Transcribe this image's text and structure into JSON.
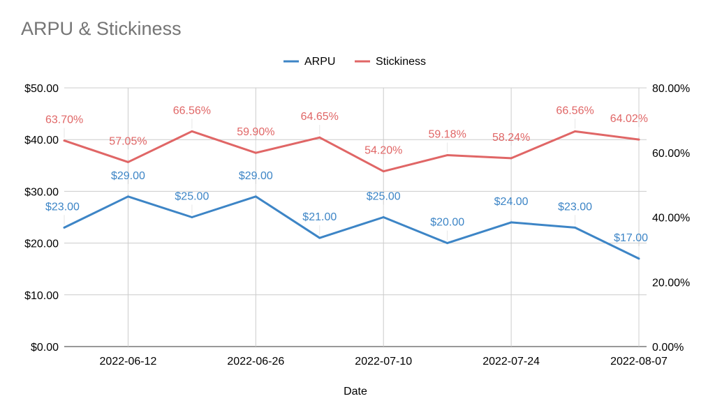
{
  "chart_data": {
    "type": "line",
    "title": "ARPU & Stickiness",
    "xlabel": "Date",
    "ylabel": "",
    "y2label": "",
    "x": [
      "2022-06-05",
      "2022-06-12",
      "2022-06-19",
      "2022-06-26",
      "2022-07-03",
      "2022-07-10",
      "2022-07-17",
      "2022-07-24",
      "2022-07-31",
      "2022-08-07"
    ],
    "x_ticks": [
      "2022-06-12",
      "2022-06-26",
      "2022-07-10",
      "2022-07-24",
      "2022-08-07"
    ],
    "ylim": [
      0,
      50
    ],
    "y_ticks": [
      "$0.00",
      "$10.00",
      "$20.00",
      "$30.00",
      "$40.00",
      "$50.00"
    ],
    "y2lim": [
      0,
      80
    ],
    "y2_ticks": [
      "0.00%",
      "20.00%",
      "40.00%",
      "60.00%",
      "80.00%"
    ],
    "grid": true,
    "legend_position": "top",
    "series": [
      {
        "name": "ARPU",
        "axis": "left",
        "color": "#3d85c6",
        "values": [
          23,
          29,
          25,
          29,
          21,
          25,
          20,
          24,
          23,
          17
        ],
        "labels": [
          "$23.00",
          "$29.00",
          "$25.00",
          "$29.00",
          "$21.00",
          "$25.00",
          "$20.00",
          "$24.00",
          "$23.00",
          "$17.00"
        ]
      },
      {
        "name": "Stickiness",
        "axis": "right",
        "color": "#e06666",
        "values": [
          63.7,
          57.05,
          66.56,
          59.9,
          64.65,
          54.2,
          59.18,
          58.24,
          66.56,
          64.02
        ],
        "labels": [
          "63.70%",
          "57.05%",
          "66.56%",
          "59.90%",
          "64.65%",
          "54.20%",
          "59.18%",
          "58.24%",
          "66.56%",
          "64.02%"
        ]
      }
    ]
  }
}
